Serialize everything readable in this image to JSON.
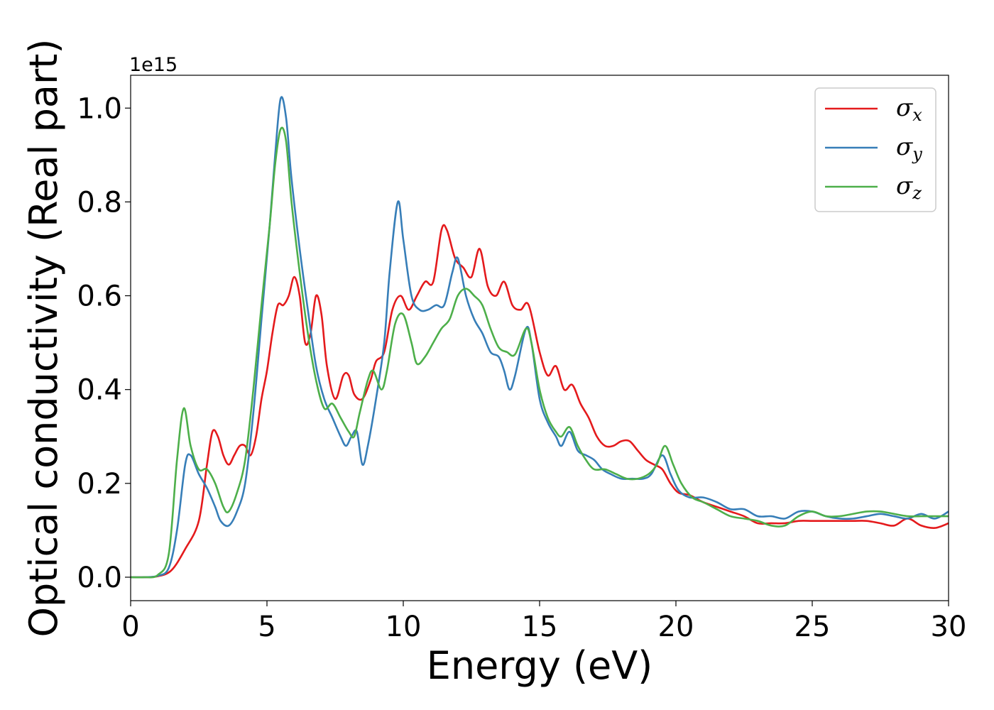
{
  "chart_data": {
    "type": "line",
    "title": "",
    "xlabel": "Energy (eV)",
    "ylabel": "Optical conductivity (Real part)",
    "y_offset_label": "1e15",
    "xlim": [
      0,
      30
    ],
    "ylim": [
      -0.05,
      1.07
    ],
    "x_ticks": [
      0,
      5,
      10,
      15,
      20,
      25,
      30
    ],
    "x_tick_labels": [
      "0",
      "5",
      "10",
      "15",
      "20",
      "25",
      "30"
    ],
    "y_ticks": [
      0.0,
      0.2,
      0.4,
      0.6,
      0.8,
      1.0
    ],
    "y_tick_labels": [
      "0.0",
      "0.2",
      "0.4",
      "0.6",
      "0.8",
      "1.0"
    ],
    "grid": false,
    "legend_position": "top-right",
    "series": [
      {
        "name": "σx",
        "symbol": "σ",
        "subscript": "x",
        "color": "#e41a1c",
        "points": [
          [
            0,
            0
          ],
          [
            0.5,
            0
          ],
          [
            1.0,
            0.002
          ],
          [
            1.5,
            0.015
          ],
          [
            2.0,
            0.06
          ],
          [
            2.5,
            0.12
          ],
          [
            2.8,
            0.24
          ],
          [
            3.0,
            0.31
          ],
          [
            3.2,
            0.3
          ],
          [
            3.4,
            0.26
          ],
          [
            3.6,
            0.24
          ],
          [
            3.8,
            0.26
          ],
          [
            4.0,
            0.28
          ],
          [
            4.2,
            0.28
          ],
          [
            4.4,
            0.26
          ],
          [
            4.6,
            0.3
          ],
          [
            4.8,
            0.38
          ],
          [
            5.0,
            0.44
          ],
          [
            5.2,
            0.52
          ],
          [
            5.4,
            0.58
          ],
          [
            5.6,
            0.58
          ],
          [
            5.8,
            0.6
          ],
          [
            6.0,
            0.64
          ],
          [
            6.2,
            0.6
          ],
          [
            6.4,
            0.5
          ],
          [
            6.6,
            0.52
          ],
          [
            6.8,
            0.6
          ],
          [
            7.0,
            0.56
          ],
          [
            7.2,
            0.45
          ],
          [
            7.5,
            0.38
          ],
          [
            7.8,
            0.43
          ],
          [
            8.0,
            0.43
          ],
          [
            8.2,
            0.39
          ],
          [
            8.5,
            0.38
          ],
          [
            8.8,
            0.42
          ],
          [
            9.0,
            0.46
          ],
          [
            9.3,
            0.48
          ],
          [
            9.6,
            0.57
          ],
          [
            9.9,
            0.6
          ],
          [
            10.2,
            0.57
          ],
          [
            10.5,
            0.6
          ],
          [
            10.8,
            0.63
          ],
          [
            11.1,
            0.63
          ],
          [
            11.4,
            0.74
          ],
          [
            11.6,
            0.74
          ],
          [
            11.9,
            0.68
          ],
          [
            12.2,
            0.66
          ],
          [
            12.5,
            0.64
          ],
          [
            12.8,
            0.7
          ],
          [
            13.1,
            0.62
          ],
          [
            13.4,
            0.6
          ],
          [
            13.7,
            0.63
          ],
          [
            14.0,
            0.58
          ],
          [
            14.3,
            0.57
          ],
          [
            14.6,
            0.58
          ],
          [
            15.0,
            0.48
          ],
          [
            15.3,
            0.43
          ],
          [
            15.6,
            0.45
          ],
          [
            15.9,
            0.4
          ],
          [
            16.2,
            0.41
          ],
          [
            16.5,
            0.37
          ],
          [
            16.8,
            0.34
          ],
          [
            17.1,
            0.3
          ],
          [
            17.4,
            0.28
          ],
          [
            17.7,
            0.28
          ],
          [
            18.0,
            0.29
          ],
          [
            18.3,
            0.29
          ],
          [
            18.6,
            0.27
          ],
          [
            18.9,
            0.25
          ],
          [
            19.2,
            0.24
          ],
          [
            19.5,
            0.23
          ],
          [
            19.8,
            0.2
          ],
          [
            20.1,
            0.18
          ],
          [
            20.5,
            0.175
          ],
          [
            21.0,
            0.16
          ],
          [
            21.5,
            0.15
          ],
          [
            22.0,
            0.14
          ],
          [
            22.5,
            0.13
          ],
          [
            23.0,
            0.115
          ],
          [
            23.5,
            0.115
          ],
          [
            24.0,
            0.115
          ],
          [
            24.5,
            0.12
          ],
          [
            25.0,
            0.12
          ],
          [
            25.5,
            0.12
          ],
          [
            26.0,
            0.12
          ],
          [
            26.5,
            0.12
          ],
          [
            27.0,
            0.12
          ],
          [
            27.5,
            0.115
          ],
          [
            28.0,
            0.11
          ],
          [
            28.5,
            0.125
          ],
          [
            29.0,
            0.11
          ],
          [
            29.5,
            0.105
          ],
          [
            30.0,
            0.115
          ]
        ]
      },
      {
        "name": "σy",
        "symbol": "σ",
        "subscript": "y",
        "color": "#377eb8",
        "points": [
          [
            0,
            0
          ],
          [
            0.5,
            0
          ],
          [
            1.0,
            0.003
          ],
          [
            1.4,
            0.02
          ],
          [
            1.7,
            0.1
          ],
          [
            2.0,
            0.24
          ],
          [
            2.2,
            0.26
          ],
          [
            2.5,
            0.22
          ],
          [
            2.8,
            0.19
          ],
          [
            3.1,
            0.15
          ],
          [
            3.3,
            0.12
          ],
          [
            3.6,
            0.11
          ],
          [
            3.9,
            0.14
          ],
          [
            4.2,
            0.2
          ],
          [
            4.5,
            0.35
          ],
          [
            4.8,
            0.55
          ],
          [
            5.1,
            0.75
          ],
          [
            5.3,
            0.9
          ],
          [
            5.5,
            1.02
          ],
          [
            5.7,
            0.98
          ],
          [
            5.9,
            0.85
          ],
          [
            6.2,
            0.7
          ],
          [
            6.5,
            0.57
          ],
          [
            6.8,
            0.45
          ],
          [
            7.1,
            0.38
          ],
          [
            7.4,
            0.34
          ],
          [
            7.7,
            0.3
          ],
          [
            7.9,
            0.28
          ],
          [
            8.1,
            0.3
          ],
          [
            8.3,
            0.31
          ],
          [
            8.5,
            0.24
          ],
          [
            8.7,
            0.28
          ],
          [
            9.0,
            0.38
          ],
          [
            9.3,
            0.5
          ],
          [
            9.5,
            0.65
          ],
          [
            9.8,
            0.8
          ],
          [
            10.0,
            0.72
          ],
          [
            10.3,
            0.6
          ],
          [
            10.6,
            0.57
          ],
          [
            10.9,
            0.57
          ],
          [
            11.2,
            0.58
          ],
          [
            11.5,
            0.58
          ],
          [
            11.8,
            0.65
          ],
          [
            12.0,
            0.68
          ],
          [
            12.3,
            0.6
          ],
          [
            12.6,
            0.55
          ],
          [
            12.9,
            0.52
          ],
          [
            13.2,
            0.48
          ],
          [
            13.5,
            0.47
          ],
          [
            13.7,
            0.44
          ],
          [
            13.9,
            0.4
          ],
          [
            14.1,
            0.43
          ],
          [
            14.5,
            0.53
          ],
          [
            14.7,
            0.5
          ],
          [
            15.0,
            0.38
          ],
          [
            15.3,
            0.33
          ],
          [
            15.6,
            0.3
          ],
          [
            15.8,
            0.28
          ],
          [
            16.1,
            0.31
          ],
          [
            16.4,
            0.27
          ],
          [
            16.7,
            0.26
          ],
          [
            17.0,
            0.25
          ],
          [
            17.3,
            0.23
          ],
          [
            17.6,
            0.22
          ],
          [
            18.0,
            0.21
          ],
          [
            18.4,
            0.21
          ],
          [
            18.8,
            0.21
          ],
          [
            19.1,
            0.22
          ],
          [
            19.5,
            0.26
          ],
          [
            19.8,
            0.22
          ],
          [
            20.1,
            0.185
          ],
          [
            20.5,
            0.17
          ],
          [
            21.0,
            0.17
          ],
          [
            21.5,
            0.16
          ],
          [
            22.0,
            0.145
          ],
          [
            22.5,
            0.145
          ],
          [
            23.0,
            0.13
          ],
          [
            23.5,
            0.13
          ],
          [
            24.0,
            0.125
          ],
          [
            24.5,
            0.14
          ],
          [
            25.0,
            0.14
          ],
          [
            25.5,
            0.13
          ],
          [
            26.0,
            0.125
          ],
          [
            26.5,
            0.125
          ],
          [
            27.0,
            0.13
          ],
          [
            27.5,
            0.135
          ],
          [
            28.0,
            0.13
          ],
          [
            28.5,
            0.125
          ],
          [
            29.0,
            0.135
          ],
          [
            29.5,
            0.125
          ],
          [
            30.0,
            0.14
          ]
        ]
      },
      {
        "name": "σz",
        "symbol": "σ",
        "subscript": "z",
        "color": "#4daf4a",
        "points": [
          [
            0,
            0
          ],
          [
            0.5,
            0
          ],
          [
            1.0,
            0.005
          ],
          [
            1.4,
            0.05
          ],
          [
            1.7,
            0.25
          ],
          [
            1.95,
            0.36
          ],
          [
            2.2,
            0.28
          ],
          [
            2.5,
            0.23
          ],
          [
            2.8,
            0.23
          ],
          [
            3.1,
            0.2
          ],
          [
            3.4,
            0.15
          ],
          [
            3.6,
            0.14
          ],
          [
            3.9,
            0.18
          ],
          [
            4.2,
            0.25
          ],
          [
            4.5,
            0.4
          ],
          [
            4.8,
            0.58
          ],
          [
            5.1,
            0.75
          ],
          [
            5.3,
            0.88
          ],
          [
            5.5,
            0.955
          ],
          [
            5.7,
            0.93
          ],
          [
            5.9,
            0.8
          ],
          [
            6.2,
            0.65
          ],
          [
            6.5,
            0.52
          ],
          [
            6.8,
            0.42
          ],
          [
            7.1,
            0.36
          ],
          [
            7.4,
            0.37
          ],
          [
            7.7,
            0.34
          ],
          [
            8.0,
            0.31
          ],
          [
            8.2,
            0.3
          ],
          [
            8.4,
            0.35
          ],
          [
            8.7,
            0.42
          ],
          [
            8.9,
            0.44
          ],
          [
            9.2,
            0.4
          ],
          [
            9.4,
            0.44
          ],
          [
            9.7,
            0.54
          ],
          [
            10.0,
            0.56
          ],
          [
            10.3,
            0.5
          ],
          [
            10.5,
            0.455
          ],
          [
            10.8,
            0.47
          ],
          [
            11.1,
            0.5
          ],
          [
            11.4,
            0.53
          ],
          [
            11.7,
            0.55
          ],
          [
            12.0,
            0.6
          ],
          [
            12.3,
            0.615
          ],
          [
            12.6,
            0.6
          ],
          [
            12.9,
            0.58
          ],
          [
            13.2,
            0.53
          ],
          [
            13.5,
            0.49
          ],
          [
            13.8,
            0.48
          ],
          [
            14.1,
            0.475
          ],
          [
            14.5,
            0.53
          ],
          [
            14.7,
            0.5
          ],
          [
            15.0,
            0.4
          ],
          [
            15.3,
            0.34
          ],
          [
            15.6,
            0.31
          ],
          [
            15.8,
            0.3
          ],
          [
            16.1,
            0.32
          ],
          [
            16.4,
            0.28
          ],
          [
            16.7,
            0.25
          ],
          [
            17.0,
            0.23
          ],
          [
            17.4,
            0.23
          ],
          [
            17.8,
            0.22
          ],
          [
            18.2,
            0.21
          ],
          [
            18.6,
            0.21
          ],
          [
            19.0,
            0.22
          ],
          [
            19.3,
            0.24
          ],
          [
            19.6,
            0.28
          ],
          [
            19.9,
            0.24
          ],
          [
            20.2,
            0.2
          ],
          [
            20.6,
            0.17
          ],
          [
            21.0,
            0.16
          ],
          [
            21.5,
            0.145
          ],
          [
            22.0,
            0.13
          ],
          [
            22.5,
            0.125
          ],
          [
            23.0,
            0.12
          ],
          [
            23.5,
            0.11
          ],
          [
            24.0,
            0.11
          ],
          [
            24.5,
            0.13
          ],
          [
            25.0,
            0.14
          ],
          [
            25.5,
            0.13
          ],
          [
            26.0,
            0.13
          ],
          [
            26.5,
            0.135
          ],
          [
            27.0,
            0.14
          ],
          [
            27.5,
            0.14
          ],
          [
            28.0,
            0.135
          ],
          [
            28.5,
            0.13
          ],
          [
            29.0,
            0.13
          ],
          [
            29.5,
            0.13
          ],
          [
            30.0,
            0.13
          ]
        ]
      }
    ]
  }
}
